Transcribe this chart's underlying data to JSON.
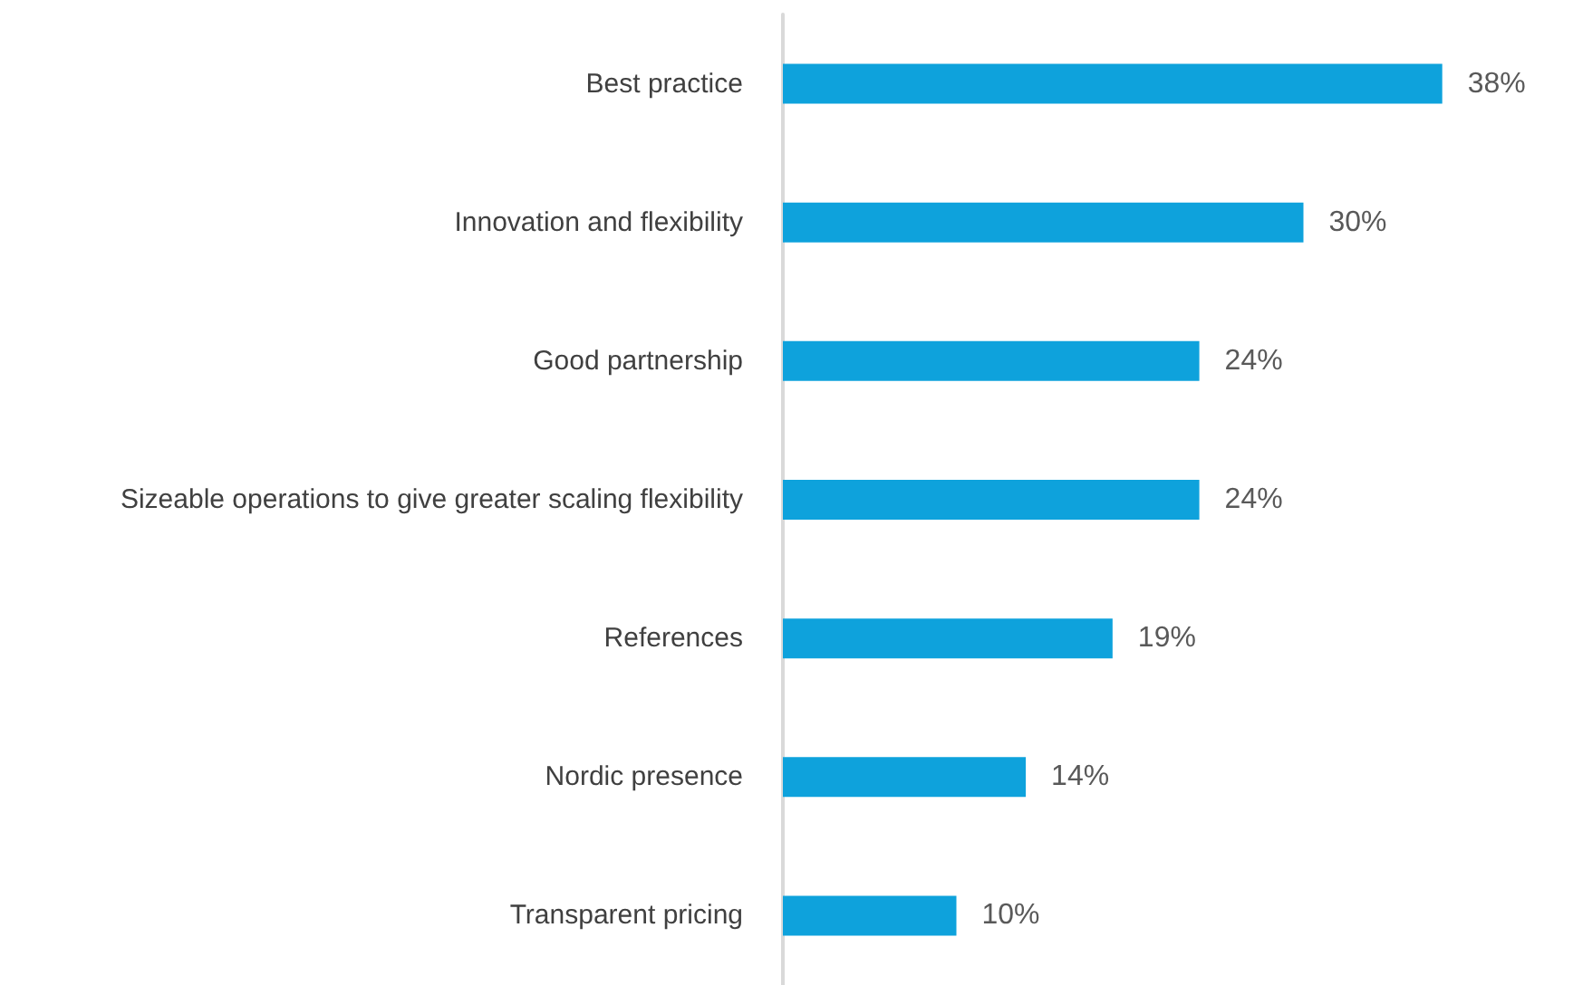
{
  "chart_data": {
    "type": "bar",
    "orientation": "horizontal",
    "categories": [
      "Best practice",
      "Innovation and flexibility",
      "Good partnership",
      "Sizeable operations to give greater scaling flexibility",
      "References",
      "Nordic presence",
      "Transparent pricing"
    ],
    "values": [
      38,
      30,
      24,
      24,
      19,
      14,
      10
    ],
    "value_labels": [
      "38%",
      "30%",
      "24%",
      "24%",
      "19%",
      "14%",
      "10%"
    ],
    "color": "#0ea2dc"
  }
}
